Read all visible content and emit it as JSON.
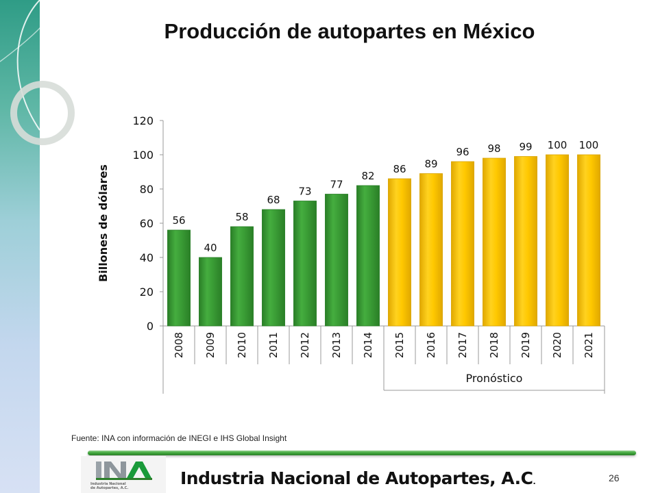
{
  "title": "Producción de autopartes en México",
  "source": "Fuente: INA con información de INEGI e IHS Global Insight",
  "footer": {
    "org_name": "Industria Nacional de  Autopartes, A.C",
    "org_suffix": ".",
    "page_number": "26",
    "logo_line1": "Industria Nacional",
    "logo_line2": "de Autopartes, A.C."
  },
  "colors": {
    "historic": "#3a9c35",
    "forecast": "#ffc800",
    "divider": "#3fa63b"
  },
  "chart_data": {
    "type": "bar",
    "title": "",
    "xlabel": "",
    "ylabel": "Billones de dólares",
    "ylim": [
      0,
      120
    ],
    "yticks": [
      0,
      20,
      40,
      60,
      80,
      100,
      120
    ],
    "grid": false,
    "categories": [
      "2008",
      "2009",
      "2010",
      "2011",
      "2012",
      "2013",
      "2014",
      "2015",
      "2016",
      "2017",
      "2018",
      "2019",
      "2020",
      "2021"
    ],
    "values": [
      56,
      40,
      58,
      68,
      73,
      77,
      82,
      86,
      89,
      96,
      98,
      99,
      100,
      100
    ],
    "category_group": {
      "label": "Pronóstico",
      "categories": [
        "2015",
        "2016",
        "2017",
        "2018",
        "2019",
        "2020",
        "2021"
      ]
    }
  }
}
